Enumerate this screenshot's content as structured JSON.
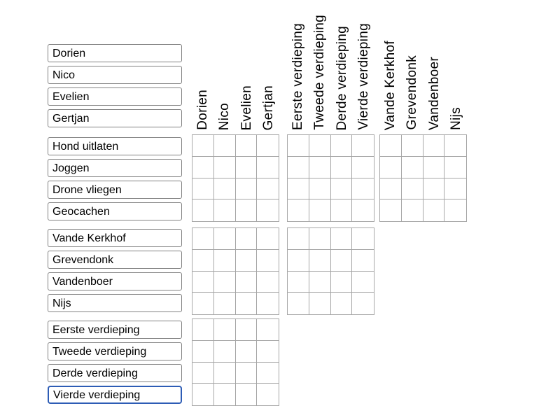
{
  "left_labels": {
    "groups": [
      {
        "id": "names",
        "items": [
          "Dorien",
          "Nico",
          "Evelien",
          "Gertjan"
        ]
      },
      {
        "id": "activities",
        "items": [
          "Hond uitlaten",
          "Joggen",
          "Drone vliegen",
          "Geocachen"
        ]
      },
      {
        "id": "surnames",
        "items": [
          "Vande Kerkhof",
          "Grevendonk",
          "Vandenboer",
          "Nijs"
        ]
      },
      {
        "id": "floors",
        "items": [
          "Eerste verdieping",
          "Tweede verdieping",
          "Derde verdieping",
          "Vierde verdieping"
        ]
      }
    ],
    "focused": {
      "group": 3,
      "item": 3
    }
  },
  "top_headers": {
    "groups": [
      {
        "id": "names",
        "items": [
          "Dorien",
          "Nico",
          "Evelien",
          "Gertjan"
        ]
      },
      {
        "id": "floors",
        "items": [
          "Eerste verdieping",
          "Tweede verdieping",
          "Derde verdieping",
          "Vierde verdieping"
        ]
      },
      {
        "id": "surnames",
        "items": [
          "Vande Kerkhof",
          "Grevendonk",
          "Vandenboer",
          "Nijs"
        ]
      }
    ]
  },
  "grid": {
    "bands": [
      {
        "row_group": "activities",
        "column_group_count": 3,
        "rows": 4,
        "cols_per_group": 4,
        "marks": []
      },
      {
        "row_group": "surnames",
        "column_group_count": 2,
        "rows": 4,
        "cols_per_group": 4,
        "marks": []
      },
      {
        "row_group": "floors",
        "column_group_count": 1,
        "rows": 4,
        "cols_per_group": 4,
        "marks": []
      }
    ],
    "all_cells_empty": true
  },
  "colors": {
    "background": "#ffffff",
    "label_border": "#828282",
    "grid_border": "#a6a6a6",
    "focus_border": "#2d5cb5",
    "text": "#000000"
  }
}
